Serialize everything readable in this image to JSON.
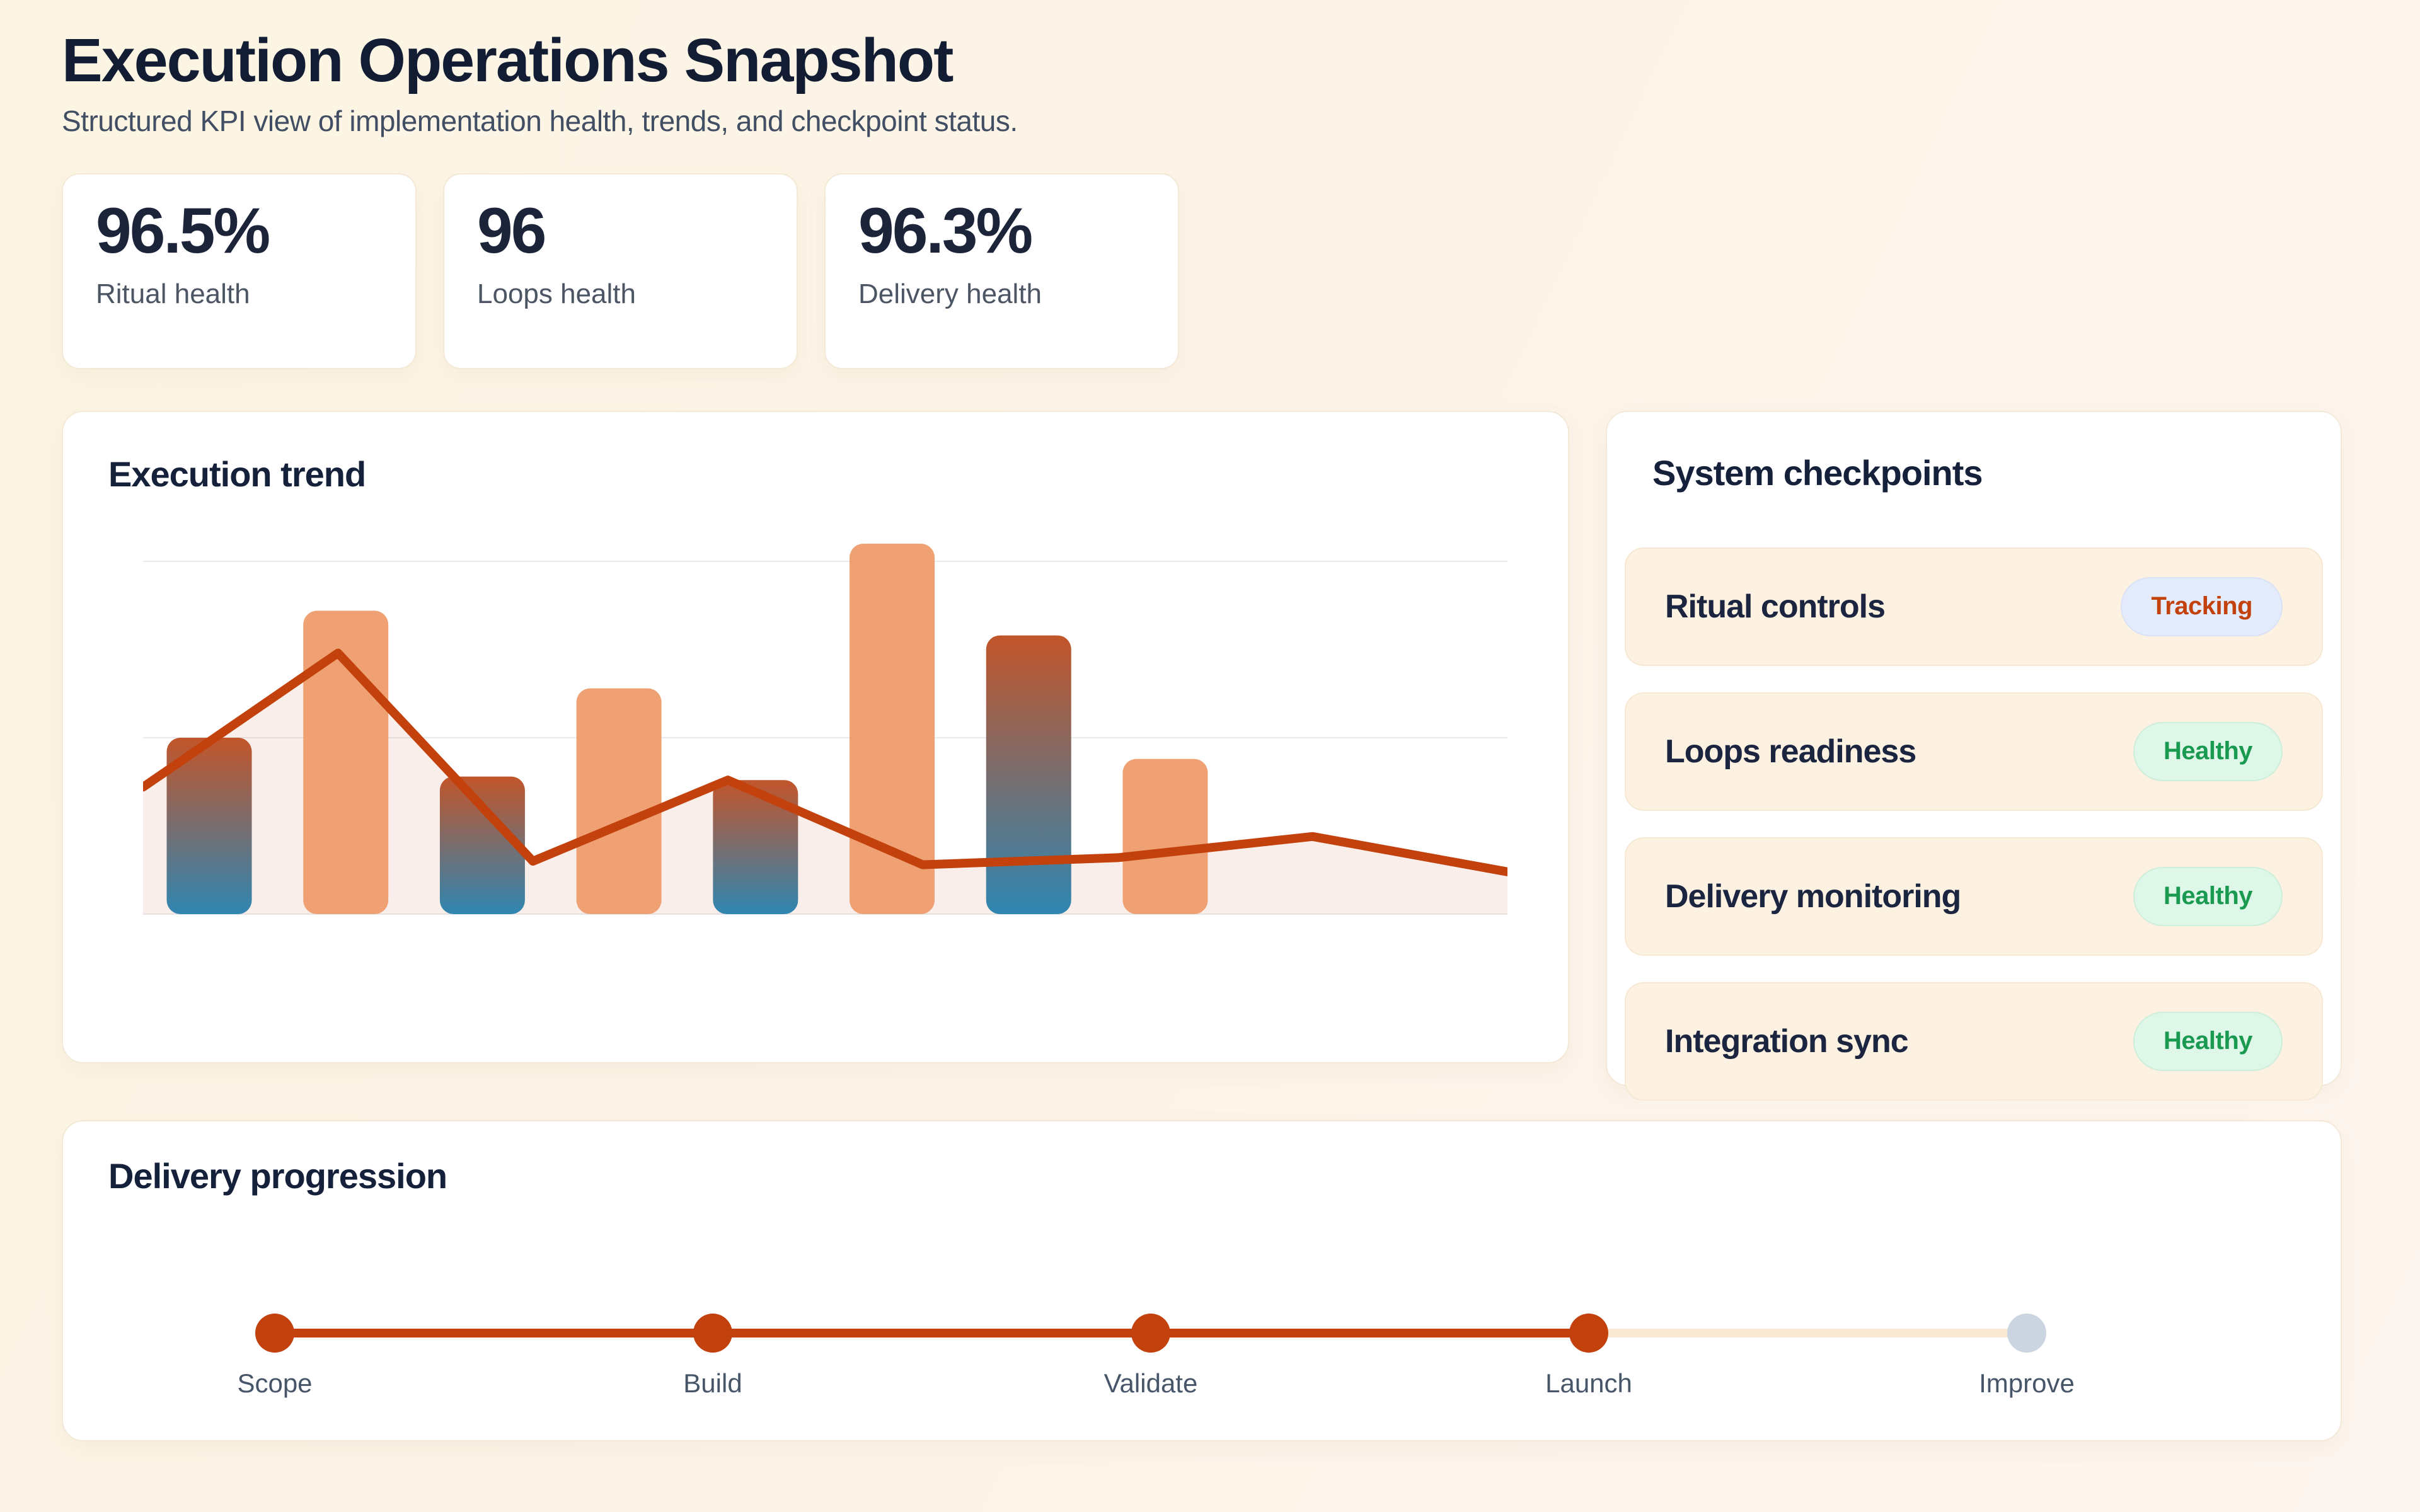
{
  "page": {
    "title": "Execution Operations Snapshot",
    "subtitle": "Structured KPI view of implementation health, trends, and checkpoint status."
  },
  "theme": {
    "background": "#fcf5e6",
    "card": "#ffffff",
    "accent": "#c2410c",
    "text_primary": "#121c33",
    "text_secondary": "#4b5563",
    "bar_solid": "#f0a173",
    "bar_gradient_top": "#c2552a",
    "bar_gradient_bottom": "#2f86b2",
    "line": "#c2410c",
    "area_fill": "rgba(194,65,12,0.09)",
    "grid": "#e8eaed",
    "row_bg": "#fdf1e2",
    "badge_tracking_bg": "#e4ebfa",
    "badge_tracking_text": "#c2410c",
    "badge_healthy_bg": "#def7e9",
    "badge_healthy_text": "#1a9a50",
    "step_inactive_line": "#f6e8d3",
    "step_inactive_dot": "#cbd5e1"
  },
  "kpis": [
    {
      "value": "96.5%",
      "label": "Ritual health"
    },
    {
      "value": "96",
      "label": "Loops health"
    },
    {
      "value": "96.3%",
      "label": "Delivery health"
    }
  ],
  "trend_card": {
    "title": "Execution trend"
  },
  "chart_data": {
    "type": "bar",
    "title": "Execution trend",
    "categories": [
      1,
      2,
      3,
      4,
      5,
      6,
      7,
      8
    ],
    "series": [
      {
        "name": "execution-bars",
        "type": "bar",
        "values": [
          50,
          86,
          39,
          64,
          38,
          105,
          79,
          44
        ],
        "bar_styles": [
          "gradient",
          "solid",
          "gradient",
          "solid",
          "gradient",
          "solid",
          "gradient",
          "solid"
        ]
      },
      {
        "name": "trend-line",
        "type": "line-area",
        "values": [
          36,
          74,
          15,
          38,
          14,
          16,
          22,
          12
        ]
      }
    ],
    "ylim": [
      0,
      110
    ],
    "gridlines": [
      0,
      50,
      100
    ],
    "xlabel": "",
    "ylabel": "",
    "legend": "none",
    "tick_labels": "none"
  },
  "checkpoints": {
    "title": "System checkpoints",
    "items": [
      {
        "label": "Ritual controls",
        "status": "Tracking",
        "variant": "tracking"
      },
      {
        "label": "Loops readiness",
        "status": "Healthy",
        "variant": "healthy"
      },
      {
        "label": "Delivery monitoring",
        "status": "Healthy",
        "variant": "healthy"
      },
      {
        "label": "Integration sync",
        "status": "Healthy",
        "variant": "healthy"
      }
    ]
  },
  "progression": {
    "title": "Delivery progression",
    "completed_through": "Launch",
    "steps": [
      {
        "label": "Scope",
        "state": "complete"
      },
      {
        "label": "Build",
        "state": "complete"
      },
      {
        "label": "Validate",
        "state": "complete"
      },
      {
        "label": "Launch",
        "state": "complete"
      },
      {
        "label": "Improve",
        "state": "pending"
      }
    ]
  }
}
